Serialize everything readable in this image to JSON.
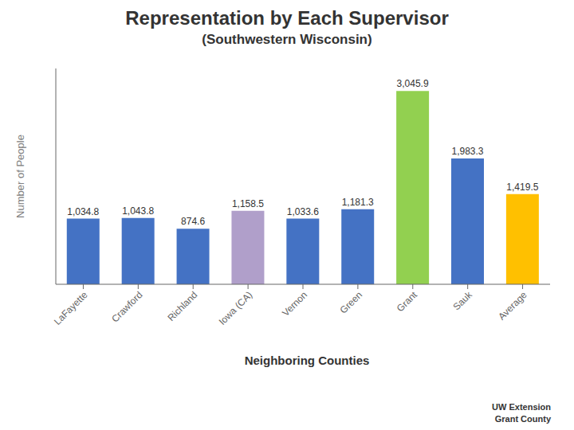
{
  "chart_data": {
    "type": "bar",
    "title": "Representation by Each Supervisor",
    "subtitle": "(Southwestern Wisconsin)",
    "categories": [
      "LaFayette",
      "Crawford",
      "Richland",
      "Iowa (CA)",
      "Vernon",
      "Green",
      "Grant",
      "Sauk",
      "Average"
    ],
    "values": [
      1034.8,
      1043.8,
      874.6,
      1158.5,
      1033.6,
      1181.3,
      3045.9,
      1983.3,
      1419.5
    ],
    "value_labels": [
      "1,034.8",
      "1,043.8",
      "874.6",
      "1,158.5",
      "1,033.6",
      "1,181.3",
      "3,045.9",
      "1,983.3",
      "1,419.5"
    ],
    "data_labels": true,
    "colors": [
      "#4472C4",
      "#4472C4",
      "#4472C4",
      "#B09FCA",
      "#4472C4",
      "#4472C4",
      "#92D050",
      "#4472C4",
      "#FFC000"
    ],
    "ylabel": "Number of People",
    "xlabel": "Neighboring Counties",
    "ylim": [
      0,
      3400
    ],
    "yticks": [],
    "grid": false,
    "tick_labels": "x",
    "annotations": [
      "UW Extension",
      "Grant County"
    ]
  }
}
